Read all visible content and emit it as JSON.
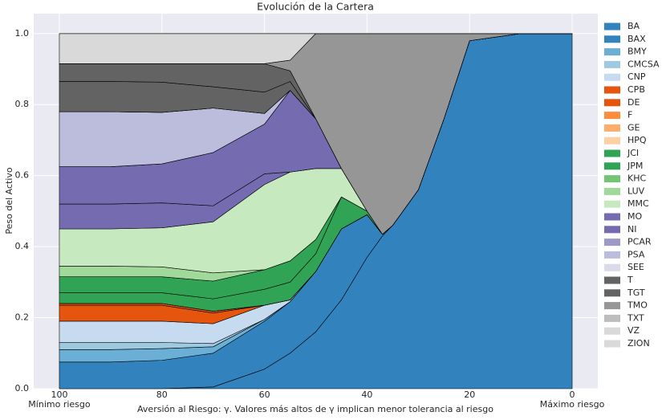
{
  "chart_data": {
    "type": "stackedarea",
    "title": "Evolución de la Cartera",
    "xlabel": "Aversión al Riesgo: γ. Valores más altos de γ implican menor tolerancia al riesgo",
    "ylabel": "Peso del Activo",
    "x_end_labels": {
      "left": "Mínimo riesgo",
      "right": "Máximo riesgo"
    },
    "x": [
      100,
      90,
      80,
      70,
      60,
      55,
      50,
      45,
      40,
      37,
      35,
      30,
      25,
      20,
      10,
      0
    ],
    "xlim": [
      105,
      -5
    ],
    "xticks": [
      100,
      80,
      60,
      40,
      20,
      0
    ],
    "ylim": [
      0,
      1.056
    ],
    "yticks": [
      {
        "value": 0,
        "label": "0.0"
      },
      0.2,
      0.4,
      0.6,
      0.8,
      {
        "value": 1,
        "label": "1.0"
      }
    ],
    "grid": true,
    "legend": "outside-right",
    "series": [
      {
        "name": "BA",
        "color": "#3182bd",
        "values": [
          0,
          0,
          0,
          0.005,
          0.055,
          0.1,
          0.16,
          0.25,
          0.37,
          0.43,
          0.46,
          0.56,
          0.76,
          0.98,
          1,
          1
        ]
      },
      {
        "name": "BAX",
        "color": "#3182bd",
        "values": [
          0.075,
          0.075,
          0.08,
          0.095,
          0.135,
          0.145,
          0.17,
          0.2,
          0.12,
          0.005,
          0,
          0,
          0,
          0,
          0,
          0
        ]
      },
      {
        "name": "BMY",
        "color": "#6baed6",
        "values": [
          0.035,
          0.035,
          0.033,
          0.018,
          0.005,
          0,
          0,
          0,
          0,
          0,
          0,
          0,
          0,
          0,
          0,
          0
        ]
      },
      {
        "name": "CMCSA",
        "color": "#9ecae1",
        "values": [
          0.02,
          0.02,
          0.017,
          0.009,
          0,
          0,
          0,
          0,
          0,
          0,
          0,
          0,
          0,
          0,
          0,
          0
        ]
      },
      {
        "name": "CNP",
        "color": "#c6dbef",
        "values": [
          0.06,
          0.06,
          0.06,
          0.056,
          0.04,
          0.005,
          0,
          0,
          0,
          0,
          0,
          0,
          0,
          0,
          0,
          0
        ]
      },
      {
        "name": "CPB",
        "color": "#e6550d",
        "values": [
          0.045,
          0.045,
          0.045,
          0.03,
          0,
          0,
          0,
          0,
          0,
          0,
          0,
          0,
          0,
          0,
          0,
          0
        ]
      },
      {
        "name": "DE",
        "color": "#e6550d",
        "values": [
          0.005,
          0.005,
          0.005,
          0.005,
          0,
          0,
          0,
          0,
          0,
          0,
          0,
          0,
          0,
          0,
          0,
          0
        ]
      },
      {
        "name": "F",
        "color": "#fd8d3c",
        "values": [
          0,
          0,
          0,
          0,
          0,
          0,
          0,
          0,
          0,
          0,
          0,
          0,
          0,
          0,
          0,
          0
        ]
      },
      {
        "name": "GE",
        "color": "#fdae6b",
        "values": [
          0,
          0,
          0,
          0,
          0,
          0,
          0,
          0,
          0,
          0,
          0,
          0,
          0,
          0,
          0,
          0
        ]
      },
      {
        "name": "HPQ",
        "color": "#fdd0a2",
        "values": [
          0,
          0,
          0,
          0,
          0,
          0,
          0,
          0,
          0,
          0,
          0,
          0,
          0,
          0,
          0,
          0
        ]
      },
      {
        "name": "JCI",
        "color": "#31a354",
        "values": [
          0.03,
          0.03,
          0.03,
          0.035,
          0.045,
          0.05,
          0.05,
          0.09,
          0.01,
          0,
          0,
          0,
          0,
          0,
          0,
          0
        ]
      },
      {
        "name": "JPM",
        "color": "#31a354",
        "values": [
          0.045,
          0.045,
          0.045,
          0.05,
          0.055,
          0.06,
          0.04,
          0,
          0,
          0,
          0,
          0,
          0,
          0,
          0,
          0
        ]
      },
      {
        "name": "KHC",
        "color": "#74c476",
        "values": [
          0,
          0,
          0,
          0,
          0,
          0,
          0,
          0,
          0,
          0,
          0,
          0,
          0,
          0,
          0,
          0
        ]
      },
      {
        "name": "LUV",
        "color": "#a1d99b",
        "values": [
          0.03,
          0.03,
          0.028,
          0.023,
          0,
          0,
          0,
          0,
          0,
          0,
          0,
          0,
          0,
          0,
          0,
          0
        ]
      },
      {
        "name": "MMC",
        "color": "#c7e9c0",
        "values": [
          0.105,
          0.105,
          0.11,
          0.144,
          0.24,
          0.25,
          0.2,
          0.08,
          0,
          0,
          0,
          0,
          0,
          0,
          0,
          0
        ]
      },
      {
        "name": "MO",
        "color": "#756bb1",
        "values": [
          0.07,
          0.07,
          0.07,
          0.045,
          0.03,
          0,
          0,
          0,
          0,
          0,
          0,
          0,
          0,
          0,
          0,
          0
        ]
      },
      {
        "name": "NI",
        "color": "#756bb1",
        "values": [
          0.105,
          0.105,
          0.11,
          0.15,
          0.14,
          0.23,
          0.14,
          0,
          0,
          0,
          0,
          0,
          0,
          0,
          0,
          0
        ]
      },
      {
        "name": "PCAR",
        "color": "#9e9ac8",
        "values": [
          0,
          0,
          0,
          0,
          0,
          0,
          0,
          0,
          0,
          0,
          0,
          0,
          0,
          0,
          0,
          0
        ]
      },
      {
        "name": "PSA",
        "color": "#bcbddc",
        "values": [
          0.155,
          0.155,
          0.145,
          0.125,
          0.03,
          0,
          0,
          0,
          0,
          0,
          0,
          0,
          0,
          0,
          0,
          0
        ]
      },
      {
        "name": "SEE",
        "color": "#dadaeb",
        "values": [
          0,
          0,
          0,
          0,
          0,
          0,
          0,
          0,
          0,
          0,
          0,
          0,
          0,
          0,
          0,
          0
        ]
      },
      {
        "name": "T",
        "color": "#636363",
        "values": [
          0.085,
          0.085,
          0.085,
          0.06,
          0.06,
          0.025,
          0,
          0,
          0,
          0,
          0,
          0,
          0,
          0,
          0,
          0
        ]
      },
      {
        "name": "TGT",
        "color": "#636363",
        "values": [
          0.05,
          0.05,
          0.052,
          0.065,
          0.08,
          0.03,
          0,
          0,
          0,
          0,
          0,
          0,
          0,
          0,
          0,
          0
        ]
      },
      {
        "name": "TMO",
        "color": "#969696",
        "values": [
          0,
          0,
          0,
          0,
          0,
          0.03,
          0.24,
          0.38,
          0.5,
          0.565,
          0.54,
          0.44,
          0.24,
          0.02,
          0,
          0
        ]
      },
      {
        "name": "TXT",
        "color": "#bdbdbd",
        "values": [
          0,
          0,
          0,
          0,
          0,
          0,
          0,
          0,
          0,
          0,
          0,
          0,
          0,
          0,
          0,
          0
        ]
      },
      {
        "name": "VZ",
        "color": "#d9d9d9",
        "values": [
          0.085,
          0.085,
          0.085,
          0.085,
          0.085,
          0.075,
          0,
          0,
          0,
          0,
          0,
          0,
          0,
          0,
          0,
          0
        ]
      },
      {
        "name": "ZION",
        "color": "#d9d9d9",
        "values": [
          0,
          0,
          0,
          0,
          0,
          0,
          0,
          0,
          0,
          0,
          0,
          0,
          0,
          0,
          0,
          0
        ]
      }
    ]
  }
}
